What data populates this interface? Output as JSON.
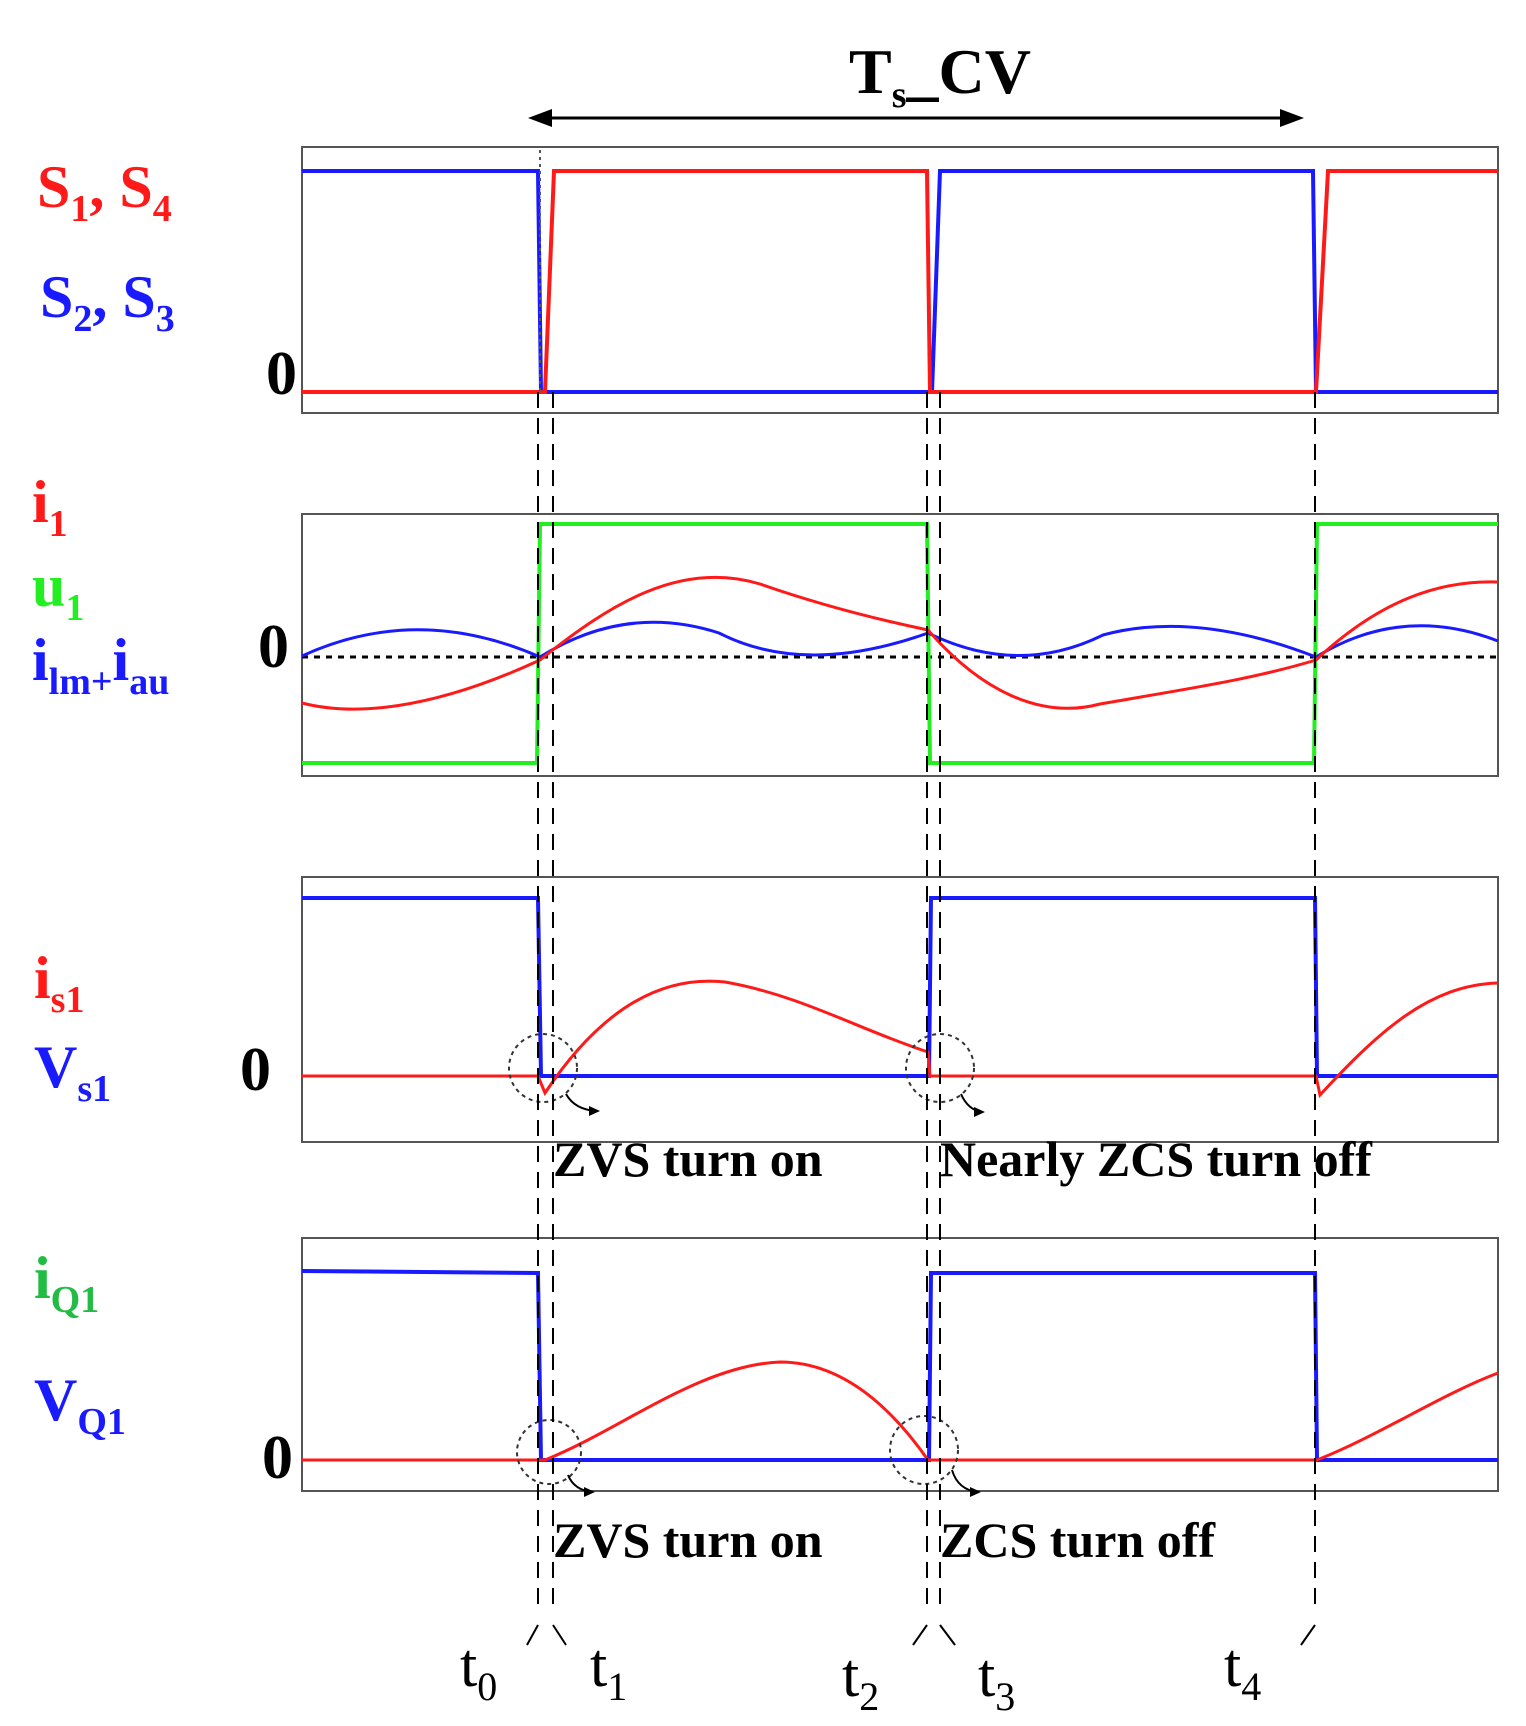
{
  "title": {
    "main": "T",
    "sub": "s",
    "rest": "_CV"
  },
  "colors": {
    "red": "#ff1a1a",
    "blue": "#1a1aff",
    "green": "#22ee22",
    "dark_green": "#22bb44",
    "black": "#000000"
  },
  "panels": [
    {
      "labels": [
        {
          "parts": [
            [
              "S",
              "",
              "red"
            ],
            [
              "1",
              "sub",
              "red"
            ],
            [
              ", S",
              "",
              "red"
            ],
            [
              "4",
              "sub",
              "red"
            ]
          ]
        },
        {
          "parts": [
            [
              "S",
              "",
              "blue"
            ],
            [
              "2",
              "sub",
              "blue"
            ],
            [
              ", S",
              "",
              "blue"
            ],
            [
              "3",
              "sub",
              "blue"
            ]
          ]
        }
      ],
      "zero": "0"
    },
    {
      "labels": [
        {
          "parts": [
            [
              "i",
              "",
              "red"
            ],
            [
              "1",
              "sub",
              "red"
            ]
          ]
        },
        {
          "parts": [
            [
              "u",
              "",
              "green"
            ],
            [
              "1",
              "sub",
              "green"
            ]
          ]
        },
        {
          "parts": [
            [
              "i",
              "",
              "blue"
            ],
            [
              "lm+",
              "sub",
              "blue"
            ],
            [
              "i",
              "",
              "blue"
            ],
            [
              "au",
              "sub",
              "blue"
            ]
          ]
        }
      ],
      "zero": "0"
    },
    {
      "labels": [
        {
          "parts": [
            [
              "i",
              "",
              "red"
            ],
            [
              "s1",
              "sub",
              "red"
            ]
          ]
        },
        {
          "parts": [
            [
              "V",
              "",
              "blue"
            ],
            [
              "s1",
              "sub",
              "blue"
            ]
          ]
        }
      ],
      "zero": "0"
    },
    {
      "labels": [
        {
          "parts": [
            [
              "i",
              "",
              "dark_green"
            ],
            [
              "Q1",
              "sub",
              "dark_green"
            ]
          ]
        },
        {
          "parts": [
            [
              "V",
              "",
              "blue"
            ],
            [
              "Q1",
              "sub",
              "blue"
            ]
          ]
        }
      ],
      "zero": "0"
    }
  ],
  "annotations": {
    "p3_left": "ZVS turn on",
    "p3_right": "Nearly ZCS turn off",
    "p4_left": "ZVS turn on",
    "p4_right": "ZCS turn off"
  },
  "time_markers": [
    {
      "main": "t",
      "sub": "0"
    },
    {
      "main": "t",
      "sub": "1"
    },
    {
      "main": "t",
      "sub": "2"
    },
    {
      "main": "t",
      "sub": "3"
    },
    {
      "main": "t",
      "sub": "4"
    }
  ]
}
